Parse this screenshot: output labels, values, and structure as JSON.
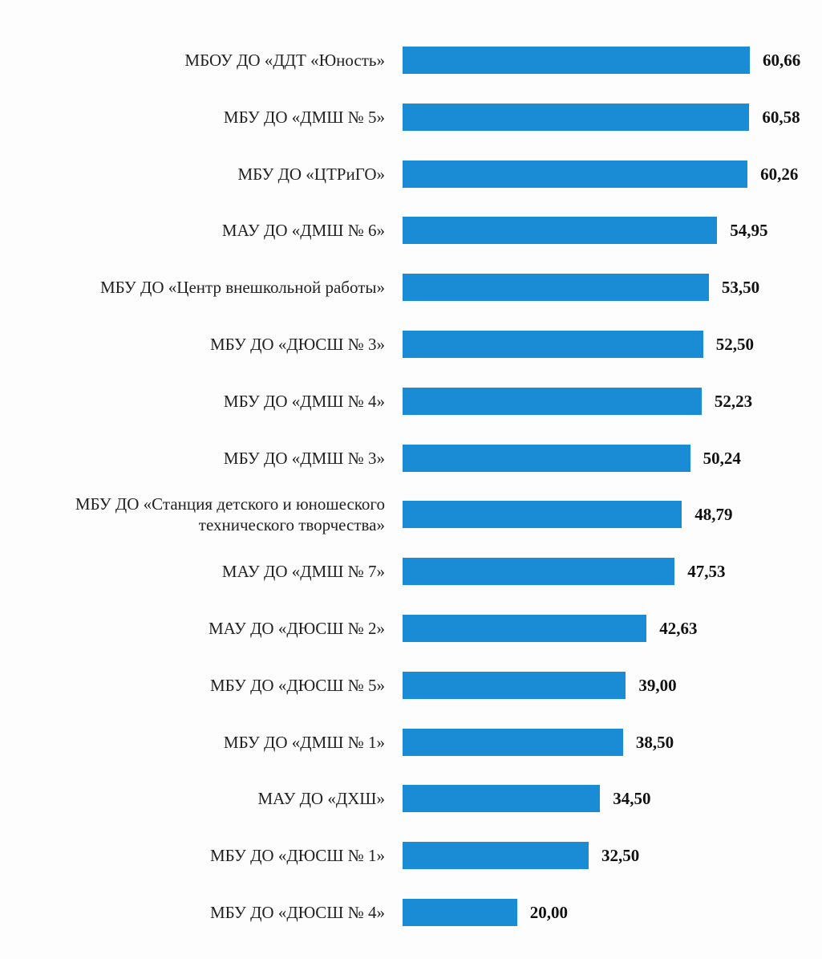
{
  "chart_data": {
    "type": "bar",
    "orientation": "horizontal",
    "color": "#1a8bd5",
    "categories": [
      "МБОУ ДО «ДДТ «Юность»",
      "МБУ ДО «ДМШ № 5»",
      "МБУ ДО «ЦТРиГО»",
      "МАУ ДО «ДМШ № 6»",
      "МБУ ДО «Центр внешкольной работы»",
      "МБУ ДО «ДЮСШ № 3»",
      "МБУ ДО «ДМШ № 4»",
      "МБУ ДО «ДМШ № 3»",
      "МБУ ДО «Станция детского и юношеского технического творчества»",
      "МАУ ДО «ДМШ № 7»",
      "МАУ ДО «ДЮСШ № 2»",
      "МБУ ДО «ДЮСШ № 5»",
      "МБУ ДО «ДМШ № 1»",
      "МАУ ДО «ДХШ»",
      "МБУ ДО «ДЮСШ № 1»",
      "МБУ ДО «ДЮСШ № 4»"
    ],
    "values": [
      60.66,
      60.58,
      60.26,
      54.95,
      53.5,
      52.5,
      52.23,
      50.24,
      48.79,
      47.53,
      42.63,
      39,
      38.5,
      34.5,
      32.5,
      20
    ],
    "value_labels": [
      "60,66",
      "60,58",
      "60,26",
      "54,95",
      "53,50",
      "52,50",
      "52,23",
      "50,24",
      "48,79",
      "47,53",
      "42,63",
      "39,00",
      "38,50",
      "34,50",
      "32,50",
      "20,00"
    ]
  }
}
